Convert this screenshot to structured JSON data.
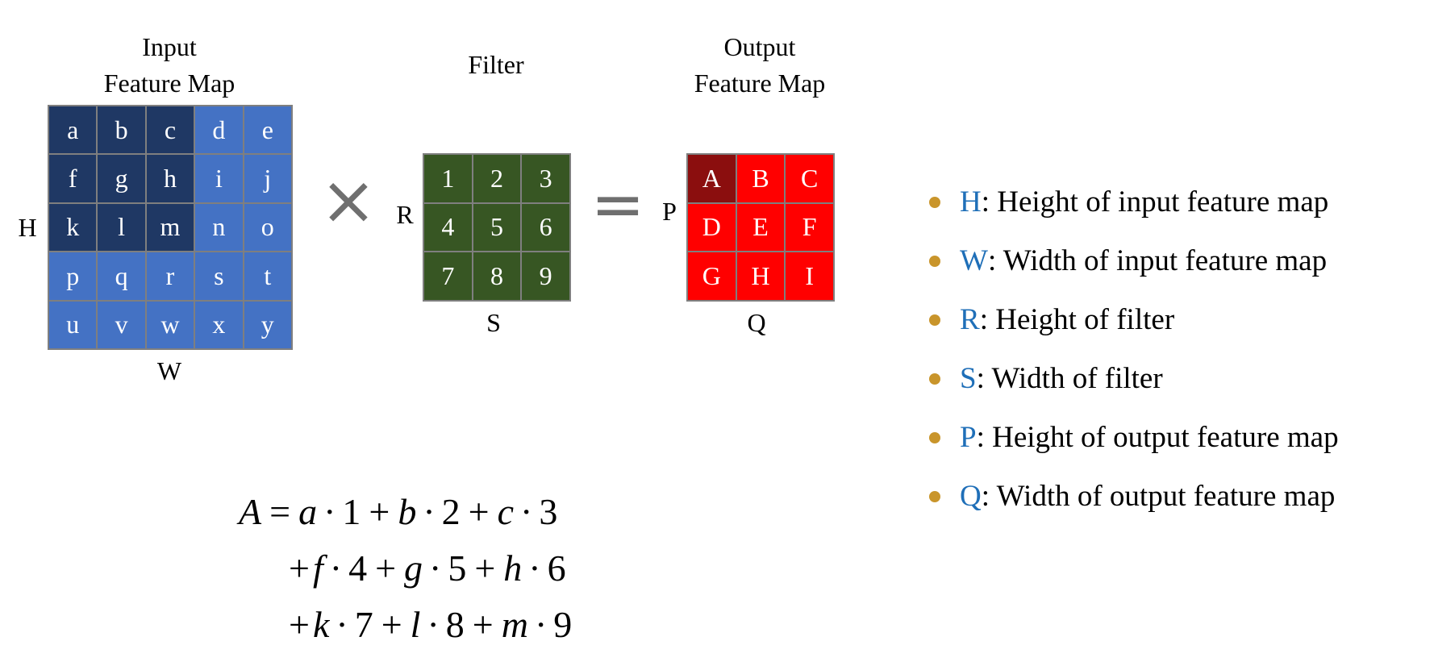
{
  "input": {
    "title_line1": "Input",
    "title_line2": "Feature Map",
    "height_label": "H",
    "width_label": "W",
    "cells": [
      "a",
      "b",
      "c",
      "d",
      "e",
      "f",
      "g",
      "h",
      "i",
      "j",
      "k",
      "l",
      "m",
      "n",
      "o",
      "p",
      "q",
      "r",
      "s",
      "t",
      "u",
      "v",
      "w",
      "x",
      "y"
    ],
    "highlighted": [
      0,
      1,
      2,
      5,
      6,
      7,
      10,
      11,
      12
    ],
    "color_highlight": "#1f3864",
    "color_base": "#4472c4"
  },
  "operator_multiply": "×",
  "filter": {
    "title": "Filter",
    "height_label": "R",
    "width_label": "S",
    "cells": [
      "1",
      "2",
      "3",
      "4",
      "5",
      "6",
      "7",
      "8",
      "9"
    ],
    "color": "#375623"
  },
  "operator_equals": "=",
  "output": {
    "title_line1": "Output",
    "title_line2": "Feature Map",
    "height_label": "P",
    "width_label": "Q",
    "cells": [
      "A",
      "B",
      "C",
      "D",
      "E",
      "F",
      "G",
      "H",
      "I"
    ],
    "highlighted": [
      0
    ],
    "color_highlight": "#8b0e0e",
    "color_base": "#ff0000"
  },
  "legend": {
    "bullet_color": "#c9952b",
    "symbol_color": "#1f6fb8",
    "items": [
      {
        "symbol": "H",
        "text": ": Height of input feature map"
      },
      {
        "symbol": "W",
        "text": ": Width of input feature map"
      },
      {
        "symbol": "R",
        "text": ": Height of filter"
      },
      {
        "symbol": "S",
        "text": ": Width of filter"
      },
      {
        "symbol": "P",
        "text": ": Height of output feature map"
      },
      {
        "symbol": "Q",
        "text": ": Width of output feature map"
      }
    ]
  },
  "equation": {
    "lhs": "A",
    "lines": [
      [
        {
          "v": "a",
          "w": "1",
          "p": "="
        },
        {
          "v": "b",
          "w": "2",
          "p": "+"
        },
        {
          "v": "c",
          "w": "3",
          "p": "+"
        }
      ],
      [
        {
          "v": "f",
          "w": "4",
          "p": "+"
        },
        {
          "v": "g",
          "w": "5",
          "p": "+"
        },
        {
          "v": "h",
          "w": "6",
          "p": "+"
        }
      ],
      [
        {
          "v": "k",
          "w": "7",
          "p": "+"
        },
        {
          "v": "l",
          "w": "8",
          "p": "+"
        },
        {
          "v": "m",
          "w": "9",
          "p": "+"
        }
      ]
    ]
  }
}
